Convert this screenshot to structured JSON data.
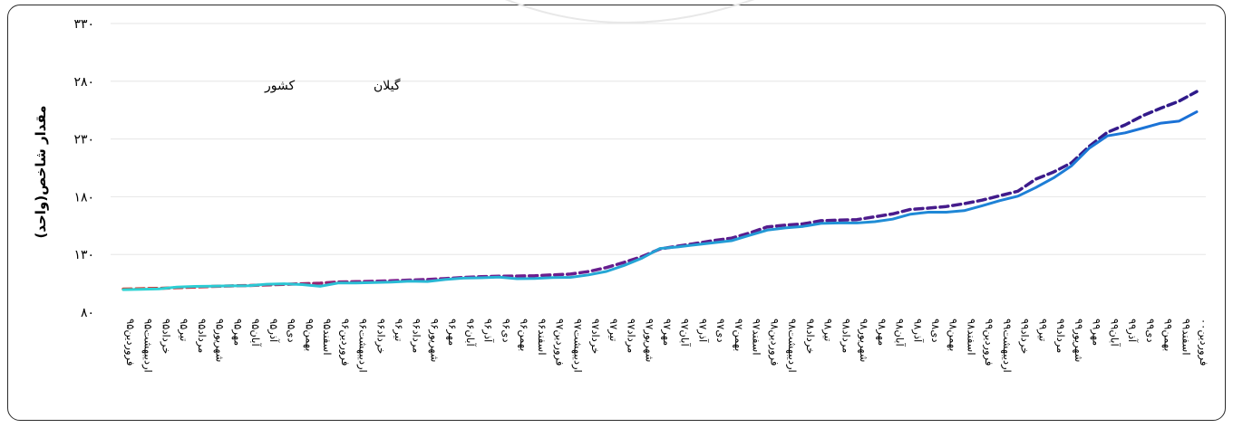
{
  "colors": {
    "country_line": "#2e1a8a",
    "country_start": "#e0301e",
    "country_mid": "#7b1f8f",
    "gilan_line_start": "#2ed4d4",
    "gilan_line_end": "#1a6fd6",
    "gridline": "#e6e6e6",
    "frame": "#2b2b2b"
  },
  "chart_data": {
    "type": "line",
    "ylabel": "مقدار شاخص(واحد)",
    "ylim": [
      80,
      330
    ],
    "yticks": [
      80,
      130,
      180,
      230,
      280,
      330
    ],
    "ytick_labels": [
      "۸۰",
      "۱۳۰",
      "۱۸۰",
      "۲۳۰",
      "۲۸۰",
      "۳۳۰"
    ],
    "grid": true,
    "legend_position": "top-left",
    "categories": [
      "فروردین۹۵",
      "اردیبهشت۹۵",
      "خرداد۹۵",
      "تیر۹۵",
      "مرداد۹۵",
      "شهریور۹۵",
      "مهر۹۵",
      "آبان۹۵",
      "آذر۹۵",
      "دی۹۵",
      "بهمن۹۵",
      "اسفند۹۵",
      "فروردین۹۶",
      "اردیبهشت۹۶",
      "خرداد۹۶",
      "تیر۹۶",
      "مرداد۹۶",
      "شهریور۹۶",
      "مهر۹۶",
      "آبان۹۶",
      "آذر۹۶",
      "دی۹۶",
      "بهمن۹۶",
      "اسفند۹۶",
      "فروردین۹۷",
      "اردیبهشت۹۷",
      "خرداد۹۷",
      "تیر۹۷",
      "مرداد۹۷",
      "شهریور۹۷",
      "مهر۹۷",
      "آبان۹۷",
      "آذر۹۷",
      "دی۹۷",
      "بهمن۹۷",
      "اسفند۹۷",
      "فروردین۹۸",
      "اردیبهشت۹۸",
      "خرداد۹۸",
      "تیر۹۸",
      "مرداد۹۸",
      "شهریور۹۸",
      "مهر۹۸",
      "آبان۹۸",
      "آذر۹۸",
      "دی۹۸",
      "بهمن۹۸",
      "اسفند۹۸",
      "فروردین۹۹",
      "اردیبهشت۹۹",
      "خرداد۹۹",
      "تیر۹۹",
      "مرداد۹۹",
      "شهریور۹۹",
      "مهر۹۹",
      "آبان۹۹",
      "آذر۹۹",
      "دی۹۹",
      "بهمن۹۹",
      "اسفند۹۹",
      "فروردین۰۰"
    ],
    "series": [
      {
        "name": "کشور",
        "style": "dashed",
        "values": [
          100,
          100.3,
          100.6,
          101.2,
          101.8,
          102.3,
          102.7,
          103.1,
          103.6,
          104.1,
          104.6,
          105.1,
          106.2,
          106.4,
          106.7,
          107.2,
          107.8,
          108.3,
          109.1,
          110.1,
          110.7,
          111.1,
          111.3,
          111.6,
          112.3,
          113.0,
          115.2,
          118.6,
          123.2,
          128.2,
          134.8,
          137.2,
          139.6,
          142.1,
          144.1,
          148.6,
          153.9,
          155.4,
          156.5,
          159.2,
          159.7,
          160.2,
          162.6,
          165.1,
          169.0,
          170.1,
          171.5,
          174.0,
          177.0,
          180.9,
          184.8,
          195.2,
          201.4,
          209.4,
          223.7,
          235.7,
          242.2,
          250.3,
          256.7,
          262.7,
          271.1
        ]
      },
      {
        "name": "گیلان",
        "style": "solid",
        "values": [
          99.5,
          99.8,
          100.2,
          101.7,
          102.3,
          102.5,
          102.8,
          103.0,
          104.2,
          104.6,
          103.9,
          102.4,
          105.2,
          105.3,
          105.6,
          106.0,
          106.8,
          106.6,
          108.3,
          109.5,
          109.8,
          110.3,
          109.0,
          109.2,
          109.9,
          110.2,
          112.3,
          115.3,
          120.5,
          126.9,
          135.2,
          136.5,
          138.4,
          140.1,
          141.9,
          146.5,
          151.1,
          153.0,
          154.3,
          156.9,
          157.3,
          157.3,
          158.4,
          160.6,
          164.9,
          166.6,
          166.6,
          167.9,
          172.2,
          176.6,
          180.5,
          187.9,
          196.3,
          206.8,
          222.2,
          232.7,
          235.3,
          239.5,
          243.7,
          245.4,
          253.5
        ]
      }
    ]
  }
}
